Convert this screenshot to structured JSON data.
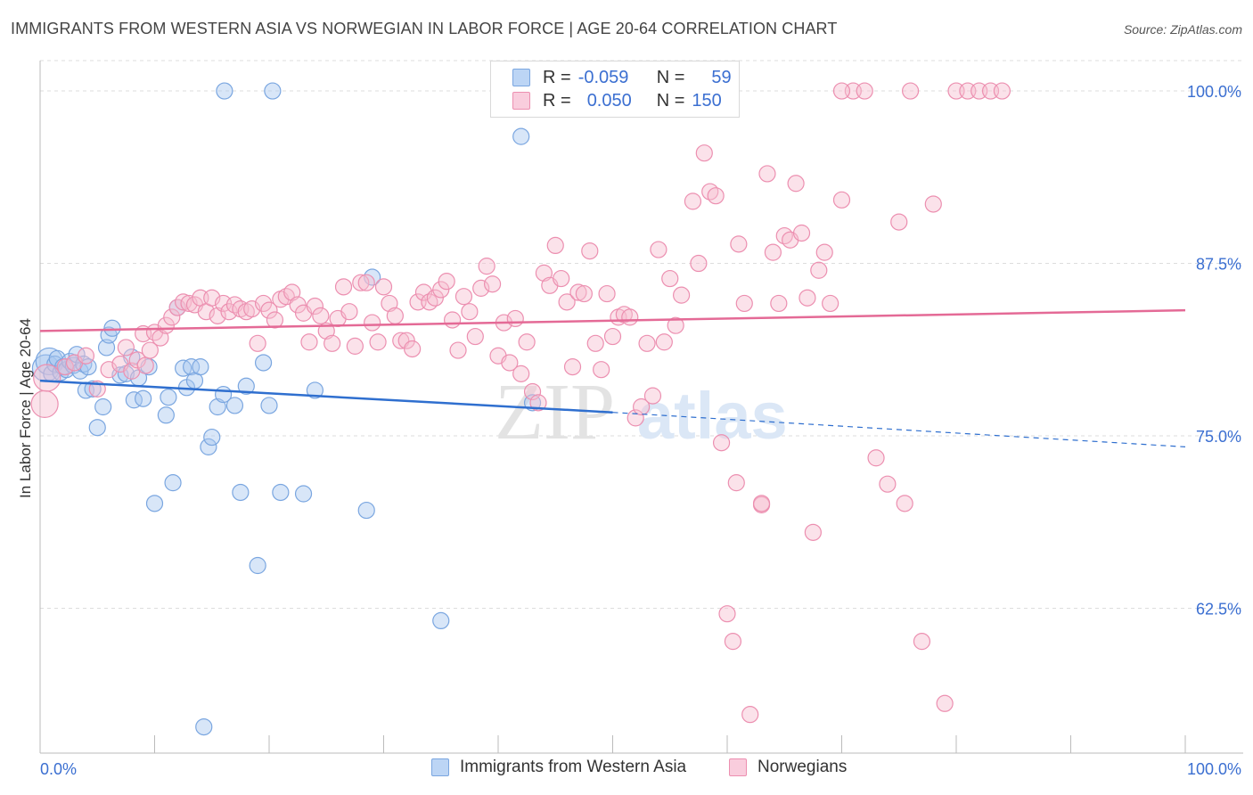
{
  "title": "IMMIGRANTS FROM WESTERN ASIA VS NORWEGIAN IN LABOR FORCE | AGE 20-64 CORRELATION CHART",
  "source": "Source: ZipAtlas.com",
  "watermark": {
    "zip": "ZIP",
    "atlas": "atlas"
  },
  "colors": {
    "blue_fill": "#a9c8f0",
    "blue_stroke": "#7aa6e0",
    "blue_line": "#2f6fcf",
    "pink_fill": "#f6bfd1",
    "pink_stroke": "#ec8fb0",
    "pink_line": "#e46a96",
    "tick_label": "#3b6fd1",
    "grid": "#dddddd"
  },
  "legend": {
    "rows": [
      {
        "r_label": "R =",
        "r_value": "-0.059",
        "n_label": "N =",
        "n_value": "59"
      },
      {
        "r_label": "R =",
        "r_value": "0.050",
        "n_label": "N =",
        "n_value": "150"
      }
    ]
  },
  "bottom_legend": [
    "Immigrants from Western Asia",
    "Norwegians"
  ],
  "chart_data": {
    "type": "scatter",
    "title": "IMMIGRANTS FROM WESTERN ASIA VS NORWEGIAN IN LABOR FORCE | AGE 20-64 CORRELATION CHART",
    "xlabel": "",
    "ylabel": "In Labor Force | Age 20-64",
    "xlim": [
      0,
      100
    ],
    "ylim": [
      52,
      102.2
    ],
    "x_tick_labels": [
      "0.0%",
      "100.0%"
    ],
    "y_ticks": [
      62.5,
      75.0,
      87.5,
      100.0
    ],
    "y_tick_labels": [
      "62.5%",
      "75.0%",
      "87.5%",
      "100.0%"
    ],
    "grid": true,
    "legend_position": "top-center",
    "series": [
      {
        "name": "Immigrants from Western Asia",
        "r": -0.059,
        "n": 59,
        "trend": {
          "x0": 0,
          "y0": 79.0,
          "x1": 50,
          "y1": 76.7,
          "dashed_to_x": 100,
          "dashed_to_y": 74.2
        },
        "points": [
          [
            0.5,
            79.9
          ],
          [
            0.8,
            80.4
          ],
          [
            1.0,
            79.5
          ],
          [
            1.3,
            80.2
          ],
          [
            1.5,
            80.6
          ],
          [
            1.8,
            79.6
          ],
          [
            2.0,
            80.0
          ],
          [
            2.3,
            79.8
          ],
          [
            2.6,
            80.4
          ],
          [
            2.9,
            80.1
          ],
          [
            3.2,
            80.9
          ],
          [
            3.5,
            79.7
          ],
          [
            3.8,
            80.2
          ],
          [
            4.0,
            78.3
          ],
          [
            4.2,
            80.0
          ],
          [
            4.6,
            78.4
          ],
          [
            5.0,
            75.6
          ],
          [
            5.5,
            77.1
          ],
          [
            5.8,
            81.4
          ],
          [
            6.0,
            82.3
          ],
          [
            6.3,
            82.8
          ],
          [
            7.0,
            79.4
          ],
          [
            7.5,
            79.5
          ],
          [
            8.0,
            80.7
          ],
          [
            8.2,
            77.6
          ],
          [
            8.6,
            79.2
          ],
          [
            9.0,
            77.7
          ],
          [
            9.5,
            80.0
          ],
          [
            10.0,
            70.1
          ],
          [
            11.0,
            76.5
          ],
          [
            11.2,
            77.8
          ],
          [
            11.6,
            71.6
          ],
          [
            12.0,
            84.3
          ],
          [
            12.5,
            79.9
          ],
          [
            12.8,
            78.5
          ],
          [
            13.2,
            80.0
          ],
          [
            13.5,
            79.0
          ],
          [
            14.0,
            80.0
          ],
          [
            14.3,
            53.9
          ],
          [
            14.7,
            74.2
          ],
          [
            15.0,
            74.9
          ],
          [
            15.5,
            77.1
          ],
          [
            16.0,
            78.0
          ],
          [
            16.1,
            100.0
          ],
          [
            17.0,
            77.2
          ],
          [
            17.5,
            70.9
          ],
          [
            18.0,
            78.6
          ],
          [
            19.0,
            65.6
          ],
          [
            19.5,
            80.3
          ],
          [
            20.0,
            77.2
          ],
          [
            20.3,
            100.0
          ],
          [
            21.0,
            70.9
          ],
          [
            23.0,
            70.8
          ],
          [
            24.0,
            78.3
          ],
          [
            28.5,
            69.6
          ],
          [
            29.0,
            86.5
          ],
          [
            35.0,
            61.6
          ],
          [
            42.0,
            96.7
          ],
          [
            43.0,
            77.4
          ]
        ]
      },
      {
        "name": "Norwegians",
        "r": 0.05,
        "n": 150,
        "trend": {
          "x0": 0,
          "y0": 82.6,
          "x1": 100,
          "y1": 84.1
        },
        "points": [
          [
            0.4,
            77.3
          ],
          [
            0.6,
            79.2
          ],
          [
            2.2,
            80.0
          ],
          [
            3.0,
            80.3
          ],
          [
            4.0,
            80.8
          ],
          [
            5.0,
            78.4
          ],
          [
            6.0,
            79.8
          ],
          [
            7.0,
            80.2
          ],
          [
            7.5,
            81.4
          ],
          [
            8.0,
            79.7
          ],
          [
            8.5,
            80.5
          ],
          [
            9.0,
            82.4
          ],
          [
            9.2,
            80.1
          ],
          [
            9.6,
            81.2
          ],
          [
            10.0,
            82.5
          ],
          [
            10.5,
            82.1
          ],
          [
            11.0,
            83.0
          ],
          [
            11.5,
            83.6
          ],
          [
            12.0,
            84.3
          ],
          [
            12.5,
            84.7
          ],
          [
            13.0,
            84.6
          ],
          [
            13.5,
            84.5
          ],
          [
            14.0,
            85.0
          ],
          [
            14.5,
            84.0
          ],
          [
            15.0,
            85.0
          ],
          [
            15.5,
            83.7
          ],
          [
            16.0,
            84.6
          ],
          [
            16.5,
            84.0
          ],
          [
            17.0,
            84.5
          ],
          [
            17.5,
            84.2
          ],
          [
            18.0,
            84.0
          ],
          [
            18.5,
            84.2
          ],
          [
            19.0,
            81.7
          ],
          [
            19.5,
            84.6
          ],
          [
            20.0,
            84.1
          ],
          [
            20.5,
            83.4
          ],
          [
            21.0,
            84.9
          ],
          [
            21.5,
            85.1
          ],
          [
            22.0,
            85.4
          ],
          [
            22.5,
            84.5
          ],
          [
            23.0,
            83.9
          ],
          [
            23.5,
            81.8
          ],
          [
            24.0,
            84.4
          ],
          [
            24.5,
            83.7
          ],
          [
            25.0,
            82.6
          ],
          [
            25.5,
            81.7
          ],
          [
            26.0,
            83.5
          ],
          [
            26.5,
            85.8
          ],
          [
            27.0,
            84.0
          ],
          [
            27.5,
            81.5
          ],
          [
            28.0,
            86.1
          ],
          [
            28.5,
            86.1
          ],
          [
            29.0,
            83.2
          ],
          [
            29.5,
            81.8
          ],
          [
            30.0,
            85.8
          ],
          [
            30.5,
            84.6
          ],
          [
            31.0,
            83.7
          ],
          [
            31.5,
            81.9
          ],
          [
            32.0,
            81.9
          ],
          [
            32.5,
            81.3
          ],
          [
            33.0,
            84.7
          ],
          [
            33.5,
            85.4
          ],
          [
            34.0,
            84.7
          ],
          [
            34.5,
            85.0
          ],
          [
            35.0,
            85.6
          ],
          [
            35.5,
            86.2
          ],
          [
            36.0,
            83.4
          ],
          [
            36.5,
            81.2
          ],
          [
            37.0,
            85.1
          ],
          [
            37.5,
            84.0
          ],
          [
            38.0,
            82.2
          ],
          [
            38.5,
            85.7
          ],
          [
            39.0,
            87.3
          ],
          [
            39.5,
            86.0
          ],
          [
            40.0,
            80.8
          ],
          [
            40.5,
            83.2
          ],
          [
            41.0,
            80.3
          ],
          [
            41.5,
            83.5
          ],
          [
            42.0,
            79.5
          ],
          [
            42.5,
            81.8
          ],
          [
            43.0,
            78.2
          ],
          [
            43.5,
            77.4
          ],
          [
            44.0,
            86.8
          ],
          [
            44.5,
            85.9
          ],
          [
            45.0,
            88.8
          ],
          [
            45.5,
            86.4
          ],
          [
            46.0,
            84.7
          ],
          [
            46.5,
            80.0
          ],
          [
            47.0,
            85.4
          ],
          [
            47.5,
            85.3
          ],
          [
            48.0,
            88.4
          ],
          [
            48.5,
            81.7
          ],
          [
            49.0,
            79.8
          ],
          [
            49.5,
            85.3
          ],
          [
            50.0,
            82.2
          ],
          [
            50.5,
            83.6
          ],
          [
            51.0,
            83.8
          ],
          [
            51.5,
            83.6
          ],
          [
            52.0,
            76.3
          ],
          [
            52.5,
            77.1
          ],
          [
            53.0,
            81.7
          ],
          [
            53.5,
            77.9
          ],
          [
            54.0,
            88.5
          ],
          [
            54.5,
            81.8
          ],
          [
            55.0,
            86.4
          ],
          [
            55.5,
            83.0
          ],
          [
            56.0,
            85.2
          ],
          [
            57.0,
            92.0
          ],
          [
            57.5,
            87.5
          ],
          [
            58.0,
            95.5
          ],
          [
            58.5,
            92.7
          ],
          [
            59.0,
            92.4
          ],
          [
            59.5,
            74.5
          ],
          [
            60.0,
            62.1
          ],
          [
            60.5,
            60.1
          ],
          [
            60.8,
            71.6
          ],
          [
            61.0,
            88.9
          ],
          [
            61.5,
            84.6
          ],
          [
            62.0,
            54.8
          ],
          [
            63.0,
            70.0
          ],
          [
            63.5,
            94.0
          ],
          [
            64.0,
            88.3
          ],
          [
            64.5,
            84.6
          ],
          [
            65.0,
            89.5
          ],
          [
            65.5,
            89.2
          ],
          [
            66.0,
            93.3
          ],
          [
            66.5,
            89.7
          ],
          [
            67.0,
            85.0
          ],
          [
            67.5,
            68.0
          ],
          [
            68.0,
            87.0
          ],
          [
            68.5,
            88.3
          ],
          [
            69.0,
            84.6
          ],
          [
            70.0,
            92.1
          ],
          [
            71.0,
            100.0
          ],
          [
            72.0,
            100.0
          ],
          [
            73.0,
            73.4
          ],
          [
            74.0,
            71.5
          ],
          [
            75.0,
            90.5
          ],
          [
            75.5,
            70.1
          ],
          [
            76.0,
            100.0
          ],
          [
            77.0,
            60.1
          ],
          [
            78.0,
            91.8
          ],
          [
            79.0,
            55.6
          ],
          [
            80.0,
            100.0
          ],
          [
            81.0,
            100.0
          ],
          [
            82.0,
            100.0
          ],
          [
            83.0,
            100.0
          ],
          [
            84.0,
            100.0
          ],
          [
            63.0,
            70.1
          ],
          [
            70.0,
            100.0
          ]
        ]
      }
    ]
  }
}
